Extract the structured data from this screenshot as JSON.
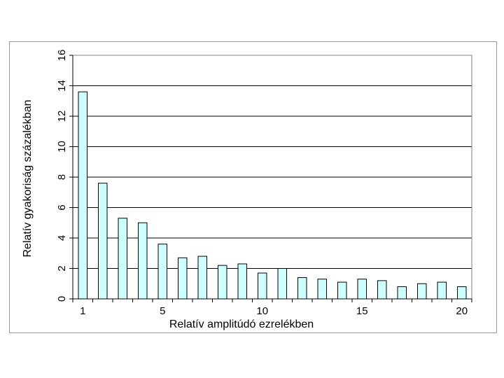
{
  "chart_data": {
    "type": "bar",
    "categories": [
      1,
      2,
      3,
      4,
      5,
      6,
      7,
      8,
      9,
      10,
      11,
      12,
      13,
      14,
      15,
      16,
      17,
      18,
      19,
      20
    ],
    "values": [
      13.6,
      7.6,
      5.3,
      5.0,
      3.6,
      2.7,
      2.8,
      2.2,
      2.3,
      1.7,
      2.0,
      1.4,
      1.3,
      1.1,
      1.3,
      1.2,
      0.8,
      1.0,
      1.1,
      0.8
    ],
    "xlabel": "Relatív amplitúdó ezrelékben",
    "ylabel": "Relatív gyakoriság százalékban",
    "ylim": [
      0,
      16
    ],
    "yticks": [
      0,
      2,
      4,
      6,
      8,
      10,
      12,
      14,
      16
    ],
    "yticklabels": [
      "0",
      "2",
      "4",
      "6",
      "8",
      "10",
      "12",
      "14",
      "16"
    ],
    "xticklabels": [
      {
        "category": 1,
        "label": "1"
      },
      {
        "category": 5,
        "label": "5"
      },
      {
        "category": 10,
        "label": "10"
      },
      {
        "category": 15,
        "label": "15"
      },
      {
        "category": 20,
        "label": "20"
      }
    ],
    "grid": true,
    "legend": "none",
    "colors": {
      "bar_fill": "#ccffff",
      "bar_stroke": "#000000",
      "grid": "#000000",
      "plot_border": "#808080"
    }
  }
}
